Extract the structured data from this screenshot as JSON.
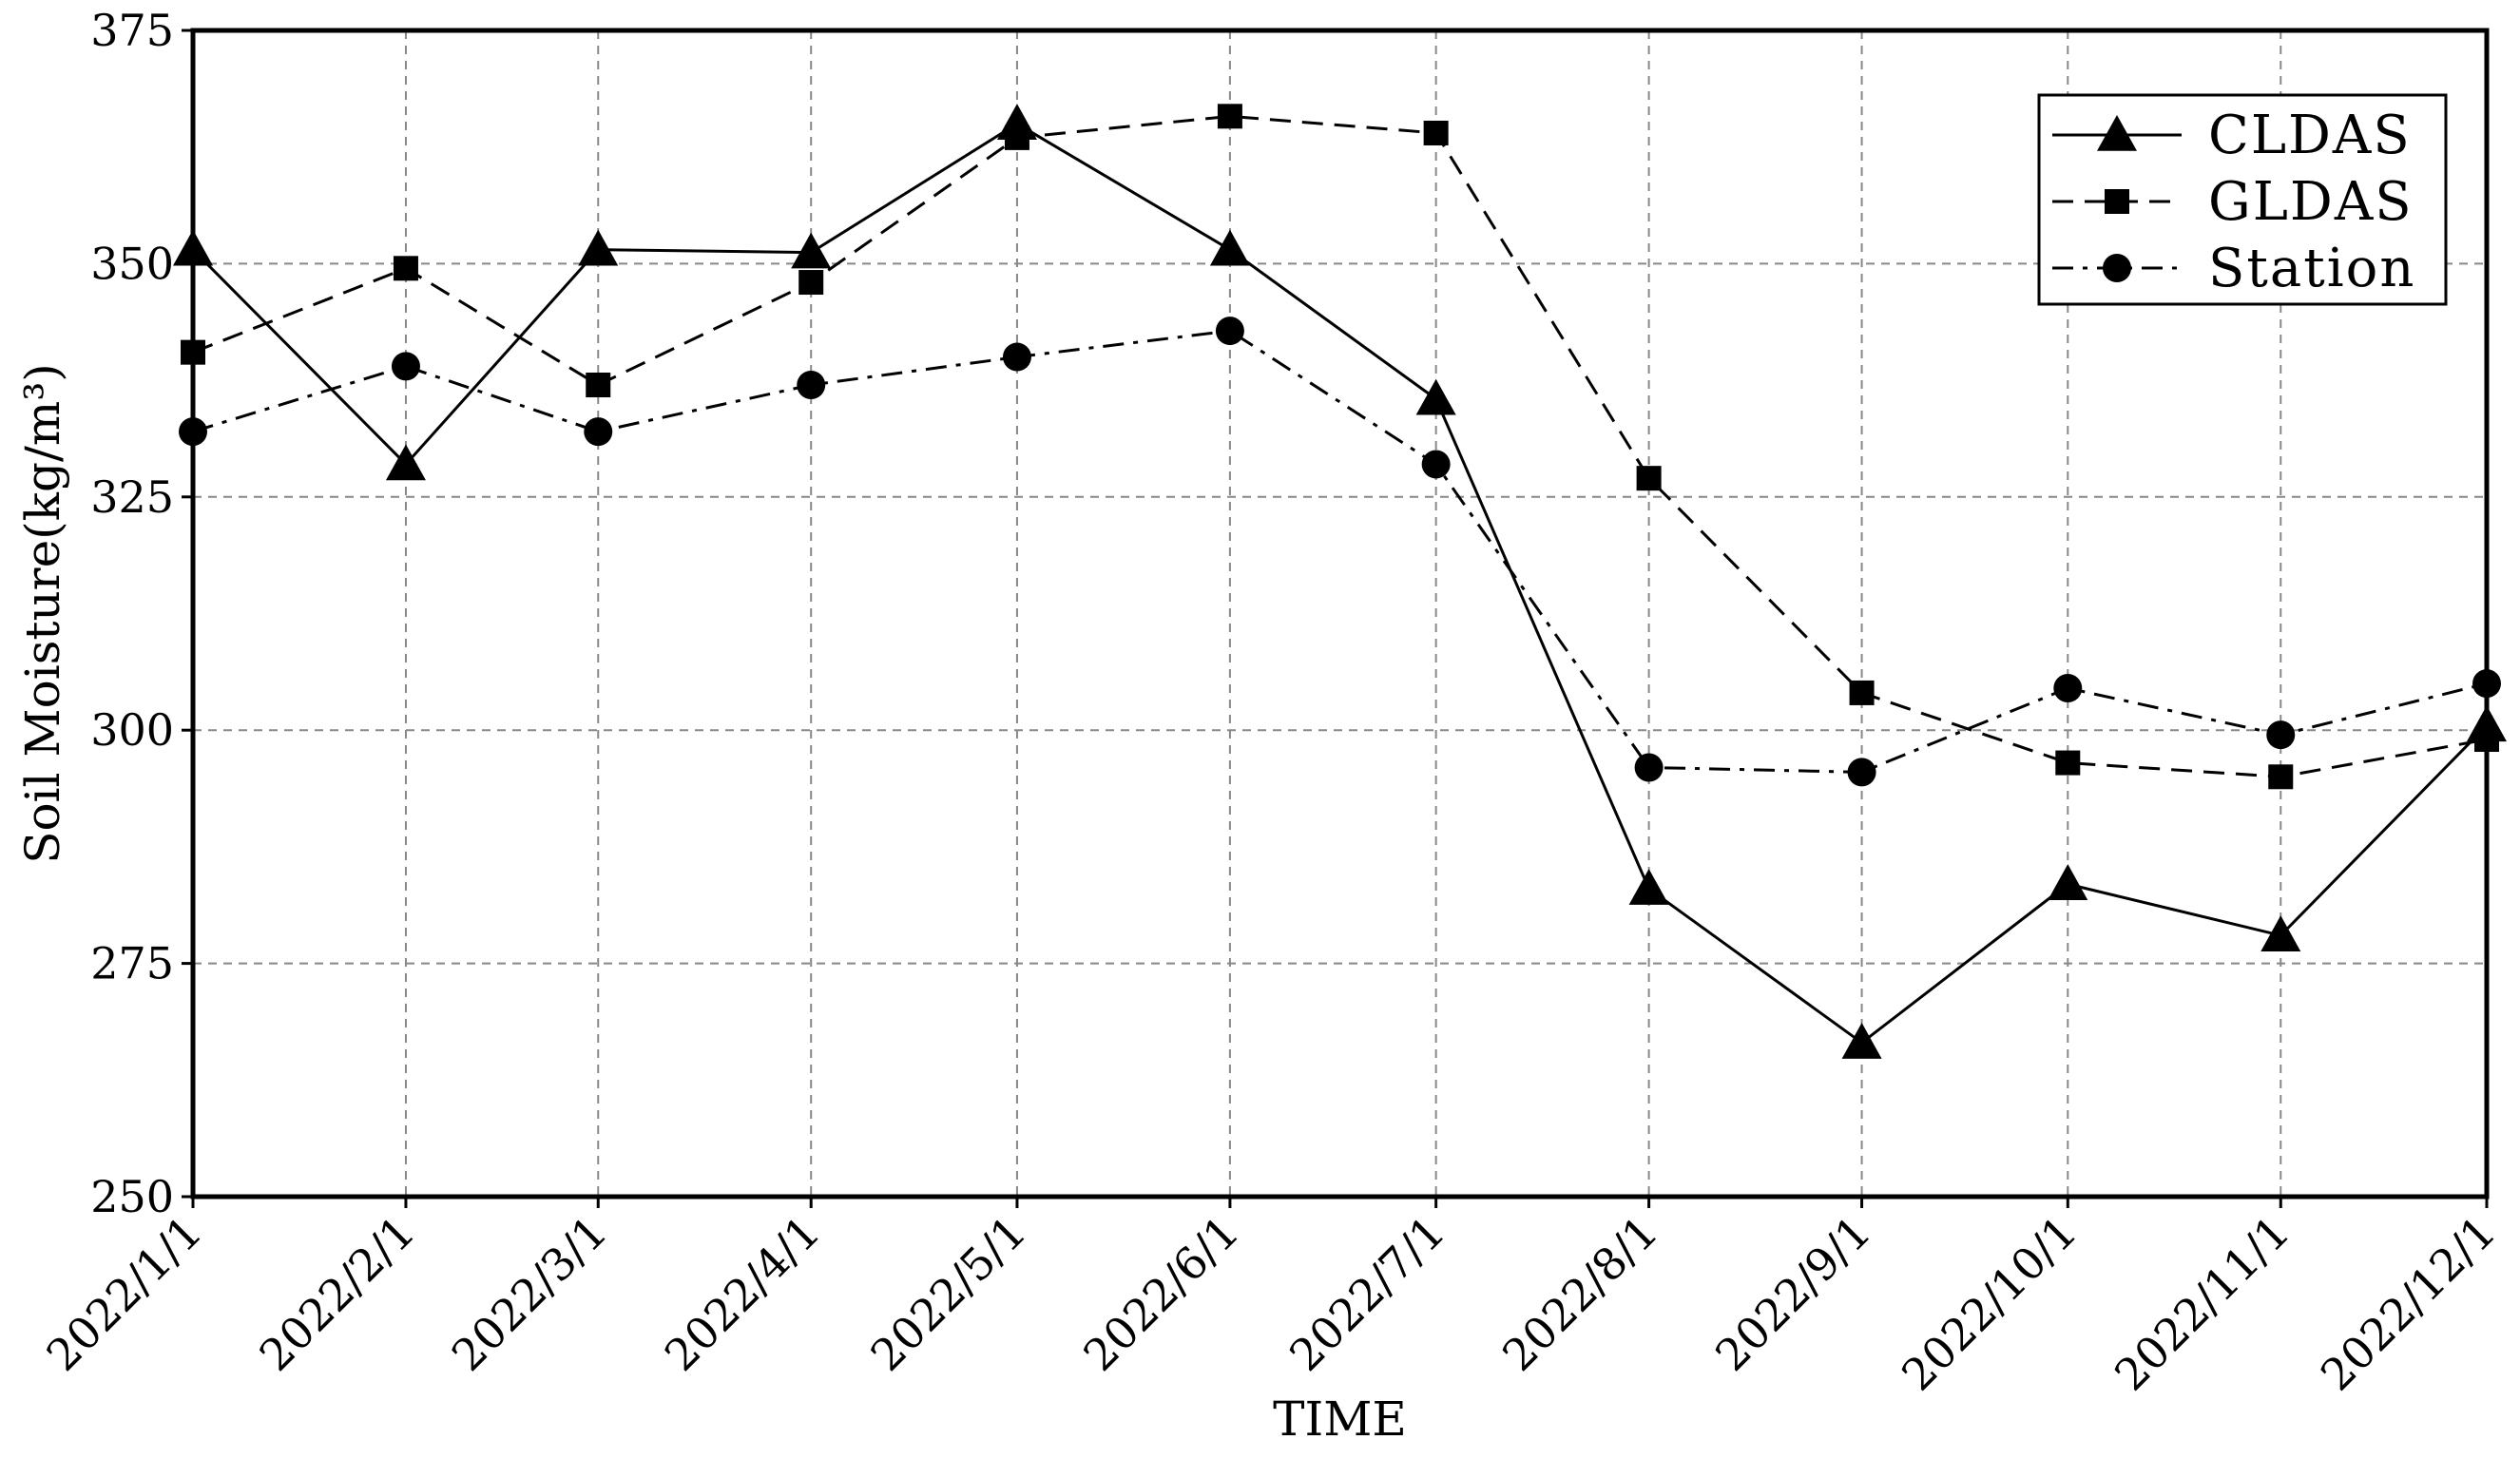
{
  "chart_data": {
    "type": "line",
    "title": "",
    "xlabel": "TIME",
    "ylabel": "Soil Moisture(kg/m³)",
    "categories": [
      "2022/1/1",
      "2022/2/1",
      "2022/3/1",
      "2022/4/1",
      "2022/5/1",
      "2022/6/1",
      "2022/7/1",
      "2022/8/1",
      "2022/9/1",
      "2022/10/1",
      "2022/11/1",
      "2022/12/1"
    ],
    "x_days": [
      0,
      31,
      59,
      90,
      120,
      151,
      181,
      212,
      243,
      273,
      304,
      334
    ],
    "ylim": [
      250,
      375
    ],
    "yticks": [
      "250",
      "275",
      "300",
      "325",
      "350",
      "375"
    ],
    "grid": true,
    "legend_position": "top-right",
    "series": [
      {
        "name": "CLDAS",
        "marker": "triangle",
        "linestyle": "solid",
        "values": [
          351.5,
          328.5,
          351.5,
          351.2,
          365.0,
          351.5,
          335.5,
          283.0,
          266.5,
          283.5,
          278.0,
          300.5
        ]
      },
      {
        "name": "GLDAS",
        "marker": "square",
        "linestyle": "dashed",
        "values": [
          340.5,
          349.5,
          337.0,
          348.0,
          363.5,
          365.8,
          364.0,
          327.0,
          304.0,
          296.5,
          295.0,
          299.0
        ]
      },
      {
        "name": "Station",
        "marker": "circle",
        "linestyle": "dashdot",
        "values": [
          332.0,
          339.0,
          332.0,
          337.0,
          340.0,
          342.8,
          328.5,
          296.0,
          295.5,
          304.5,
          299.5,
          305.0
        ]
      }
    ]
  }
}
